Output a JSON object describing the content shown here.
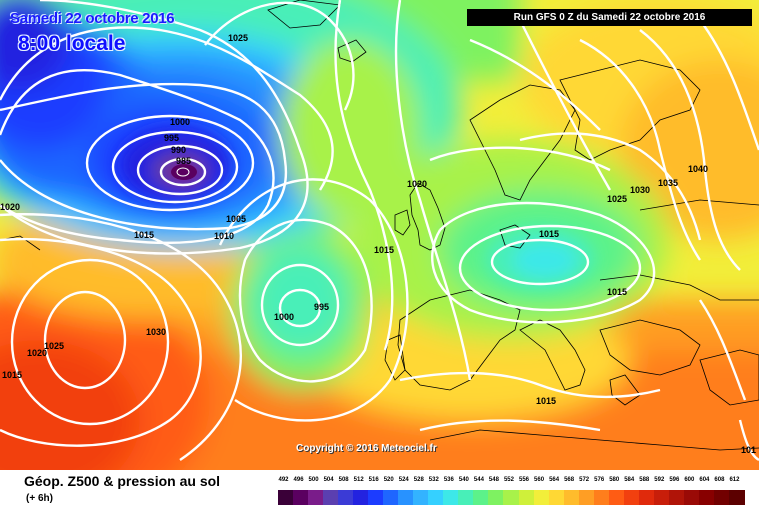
{
  "header": {
    "date": "Samedi 22 octobre 2016",
    "time": "8:00 locale",
    "run": "Run GFS 0 Z du Samedi 22 octobre 2016"
  },
  "copyright": "Copyright © 2016 Meteociel.fr",
  "footer": {
    "title": "Géop. Z500 & pression au sol",
    "step": "(+ 6h)"
  },
  "legend": {
    "values": [
      "492",
      "496",
      "500",
      "504",
      "508",
      "512",
      "516",
      "520",
      "524",
      "528",
      "532",
      "536",
      "540",
      "544",
      "548",
      "552",
      "556",
      "560",
      "564",
      "568",
      "572",
      "576",
      "580",
      "584",
      "588",
      "592",
      "596",
      "600",
      "604",
      "608",
      "612"
    ],
    "colors": [
      "#3a0038",
      "#5a0060",
      "#7a1c8a",
      "#5b3fb0",
      "#3b3bd6",
      "#2323e0",
      "#1c3cff",
      "#1f66ff",
      "#2892ff",
      "#33b3ff",
      "#35d0ff",
      "#3de8e8",
      "#48efb8",
      "#5cf28a",
      "#7ef261",
      "#a8f24a",
      "#cff03a",
      "#f2ee3a",
      "#ffd834",
      "#ffbc2c",
      "#ff9e24",
      "#ff7e1c",
      "#ff5c14",
      "#f2400f",
      "#e02a0c",
      "#c81e0a",
      "#b01408",
      "#9a0a06",
      "#880000",
      "#720000",
      "#5c0000"
    ]
  },
  "isobar_labels": [
    {
      "text": "1025",
      "id": "isobar-1025-north"
    },
    {
      "text": "1000",
      "id": "isobar-1000-low"
    },
    {
      "text": "995",
      "id": "isobar-995-low"
    },
    {
      "text": "990",
      "id": "isobar-990-low"
    },
    {
      "text": "985",
      "id": "isobar-985-low"
    },
    {
      "text": "1005",
      "id": "isobar-1005-low"
    },
    {
      "text": "1010",
      "id": "isobar-1010-low"
    },
    {
      "text": "1015",
      "id": "isobar-1015-west"
    },
    {
      "text": "1020",
      "id": "isobar-1020-west-edge"
    },
    {
      "text": "1020",
      "id": "isobar-1020-uk"
    },
    {
      "text": "1015",
      "id": "isobar-1015-atlantic"
    },
    {
      "text": "995",
      "id": "isobar-995-atlantic"
    },
    {
      "text": "1000",
      "id": "isobar-1000-atlantic"
    },
    {
      "text": "1030",
      "id": "isobar-1030-azores"
    },
    {
      "text": "1025",
      "id": "isobar-1025-azores"
    },
    {
      "text": "1020",
      "id": "isobar-1020-azores"
    },
    {
      "text": "1015",
      "id": "isobar-1015-edge"
    },
    {
      "text": "1015",
      "id": "isobar-1015-germany"
    },
    {
      "text": "1015",
      "id": "isobar-1015-poland"
    },
    {
      "text": "1030",
      "id": "isobar-1030-east"
    },
    {
      "text": "1035",
      "id": "isobar-1035-east"
    },
    {
      "text": "1040",
      "id": "isobar-1040-east"
    },
    {
      "text": "1025",
      "id": "isobar-1025-east"
    },
    {
      "text": "1015",
      "id": "isobar-1015-med"
    },
    {
      "text": "101",
      "id": "isobar-101-corner"
    }
  ]
}
